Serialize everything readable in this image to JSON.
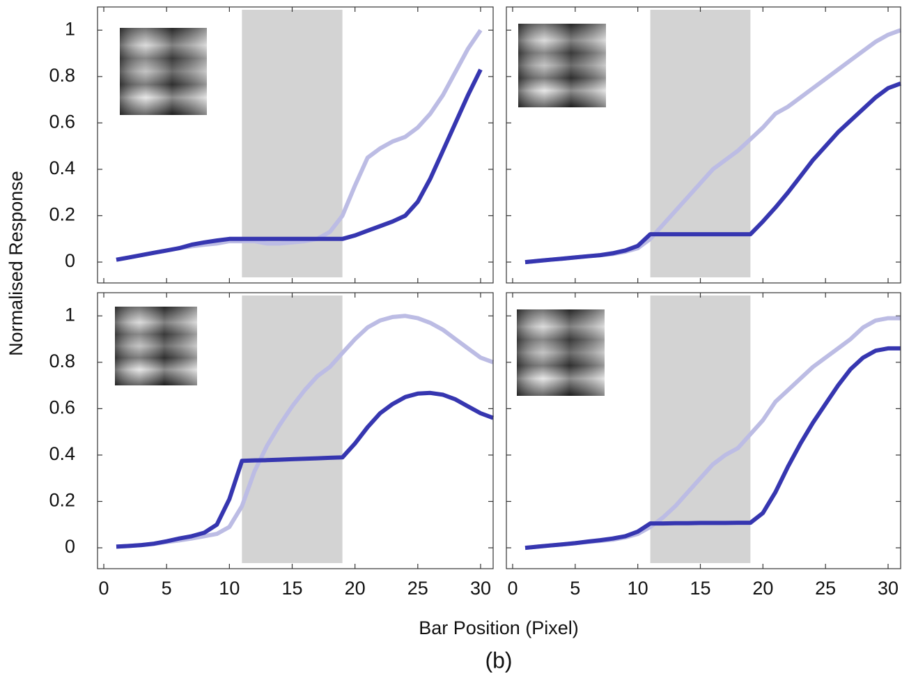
{
  "ylabel": "Normalised Response",
  "xlabel": "Bar Position (Pixel)",
  "caption": "(b)",
  "chart_data": [
    {
      "type": "line",
      "xlim": [
        -0.5,
        31
      ],
      "ylim": [
        -0.09,
        1.1
      ],
      "xticks": [
        0,
        5,
        10,
        15,
        20,
        25,
        30
      ],
      "yticks": [
        0,
        0.2,
        0.4,
        0.6,
        0.8,
        1
      ],
      "show_xtick_labels": false,
      "show_ytick_labels": true,
      "span": [
        11,
        19
      ],
      "span_color": "#d3d3d3",
      "x": [
        1,
        2,
        3,
        4,
        5,
        6,
        7,
        8,
        9,
        10,
        11,
        12,
        13,
        14,
        15,
        16,
        17,
        18,
        19,
        20,
        21,
        22,
        23,
        24,
        25,
        26,
        27,
        28,
        29,
        30
      ],
      "series": [
        {
          "color": "#bcbce4",
          "values": [
            0.01,
            0.02,
            0.03,
            0.04,
            0.05,
            0.06,
            0.068,
            0.075,
            0.08,
            0.09,
            0.09,
            0.09,
            0.08,
            0.08,
            0.085,
            0.09,
            0.1,
            0.13,
            0.2,
            0.33,
            0.45,
            0.49,
            0.52,
            0.54,
            0.58,
            0.64,
            0.72,
            0.82,
            0.92,
            1.0
          ]
        },
        {
          "color": "#3636b0",
          "values": [
            0.01,
            0.02,
            0.03,
            0.04,
            0.05,
            0.06,
            0.075,
            0.085,
            0.093,
            0.1,
            0.1,
            0.1,
            0.1,
            0.1,
            0.1,
            0.1,
            0.1,
            0.1,
            0.1,
            0.115,
            0.135,
            0.155,
            0.175,
            0.2,
            0.26,
            0.36,
            0.48,
            0.6,
            0.72,
            0.83
          ]
        }
      ]
    },
    {
      "type": "line",
      "xlim": [
        -0.5,
        31
      ],
      "ylim": [
        -0.09,
        1.1
      ],
      "xticks": [
        0,
        5,
        10,
        15,
        20,
        25,
        30
      ],
      "yticks": [
        0,
        0.2,
        0.4,
        0.6,
        0.8,
        1
      ],
      "show_xtick_labels": false,
      "show_ytick_labels": false,
      "span": [
        11,
        19
      ],
      "span_color": "#d3d3d3",
      "x": [
        1,
        2,
        3,
        4,
        5,
        6,
        7,
        8,
        9,
        10,
        11,
        12,
        13,
        14,
        15,
        16,
        17,
        18,
        19,
        20,
        21,
        22,
        23,
        24,
        25,
        26,
        27,
        28,
        29,
        30,
        31
      ],
      "series": [
        {
          "color": "#bcbce4",
          "values": [
            0,
            0.005,
            0.01,
            0.015,
            0.02,
            0.025,
            0.03,
            0.035,
            0.045,
            0.06,
            0.1,
            0.16,
            0.22,
            0.28,
            0.34,
            0.4,
            0.44,
            0.48,
            0.53,
            0.58,
            0.64,
            0.67,
            0.71,
            0.75,
            0.79,
            0.83,
            0.87,
            0.91,
            0.95,
            0.98,
            1.0
          ]
        },
        {
          "color": "#3636b0",
          "values": [
            0,
            0.005,
            0.01,
            0.015,
            0.02,
            0.025,
            0.03,
            0.038,
            0.05,
            0.07,
            0.12,
            0.12,
            0.12,
            0.12,
            0.12,
            0.12,
            0.12,
            0.12,
            0.12,
            0.175,
            0.235,
            0.3,
            0.37,
            0.44,
            0.5,
            0.56,
            0.61,
            0.66,
            0.71,
            0.75,
            0.77
          ]
        }
      ]
    },
    {
      "type": "line",
      "xlim": [
        -0.5,
        31
      ],
      "ylim": [
        -0.09,
        1.1
      ],
      "xticks": [
        0,
        5,
        10,
        15,
        20,
        25,
        30
      ],
      "yticks": [
        0,
        0.2,
        0.4,
        0.6,
        0.8,
        1
      ],
      "show_xtick_labels": true,
      "show_ytick_labels": true,
      "span": [
        11,
        19
      ],
      "span_color": "#d3d3d3",
      "x": [
        1,
        2,
        3,
        4,
        5,
        6,
        7,
        8,
        9,
        10,
        11,
        12,
        13,
        14,
        15,
        16,
        17,
        18,
        19,
        20,
        21,
        22,
        23,
        24,
        25,
        26,
        27,
        28,
        29,
        30,
        31
      ],
      "series": [
        {
          "color": "#bcbce4",
          "values": [
            0.005,
            0.008,
            0.012,
            0.017,
            0.025,
            0.032,
            0.04,
            0.05,
            0.06,
            0.09,
            0.18,
            0.33,
            0.44,
            0.53,
            0.61,
            0.68,
            0.74,
            0.78,
            0.84,
            0.9,
            0.95,
            0.98,
            0.995,
            1.0,
            0.99,
            0.97,
            0.94,
            0.9,
            0.86,
            0.82,
            0.8
          ]
        },
        {
          "color": "#3636b0",
          "values": [
            0.005,
            0.008,
            0.012,
            0.018,
            0.028,
            0.04,
            0.05,
            0.065,
            0.1,
            0.21,
            0.375,
            0.377,
            0.378,
            0.38,
            0.382,
            0.384,
            0.386,
            0.388,
            0.39,
            0.45,
            0.52,
            0.58,
            0.62,
            0.65,
            0.665,
            0.668,
            0.66,
            0.64,
            0.61,
            0.58,
            0.56
          ]
        }
      ]
    },
    {
      "type": "line",
      "xlim": [
        -0.5,
        31
      ],
      "ylim": [
        -0.09,
        1.1
      ],
      "xticks": [
        0,
        5,
        10,
        15,
        20,
        25,
        30
      ],
      "yticks": [
        0,
        0.2,
        0.4,
        0.6,
        0.8,
        1
      ],
      "show_xtick_labels": true,
      "show_ytick_labels": false,
      "span": [
        11,
        19
      ],
      "span_color": "#d3d3d3",
      "x": [
        1,
        2,
        3,
        4,
        5,
        6,
        7,
        8,
        9,
        10,
        11,
        12,
        13,
        14,
        15,
        16,
        17,
        18,
        19,
        20,
        21,
        22,
        23,
        24,
        25,
        26,
        27,
        28,
        29,
        30,
        31
      ],
      "series": [
        {
          "color": "#bcbce4",
          "values": [
            0,
            0.005,
            0.01,
            0.015,
            0.02,
            0.025,
            0.03,
            0.035,
            0.045,
            0.06,
            0.09,
            0.13,
            0.18,
            0.24,
            0.3,
            0.36,
            0.4,
            0.43,
            0.49,
            0.55,
            0.63,
            0.68,
            0.73,
            0.78,
            0.82,
            0.86,
            0.9,
            0.95,
            0.98,
            0.99,
            0.99
          ]
        },
        {
          "color": "#3636b0",
          "values": [
            0,
            0.005,
            0.01,
            0.015,
            0.02,
            0.027,
            0.033,
            0.04,
            0.05,
            0.07,
            0.105,
            0.105,
            0.106,
            0.106,
            0.107,
            0.107,
            0.107,
            0.108,
            0.108,
            0.15,
            0.24,
            0.35,
            0.45,
            0.54,
            0.62,
            0.7,
            0.77,
            0.82,
            0.85,
            0.86,
            0.86
          ]
        }
      ]
    }
  ]
}
